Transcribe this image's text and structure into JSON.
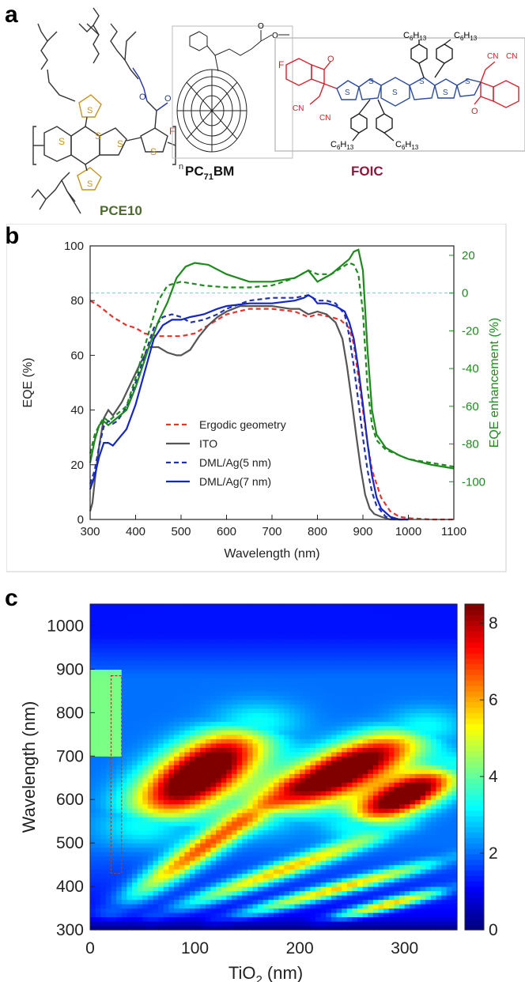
{
  "panels": {
    "a": "a",
    "b": "b",
    "c": "c"
  },
  "molecules": {
    "pce10": {
      "name": "PCE10",
      "color": "#4e6b2f",
      "atom_S": "S",
      "atom_O": "O",
      "atom_F": "F",
      "subscript_n": "n"
    },
    "pc71bm": {
      "name_pre": "PC",
      "name_sub": "71",
      "name_post": "BM"
    },
    "foic": {
      "name": "FOIC",
      "color": "#8b1a3a",
      "c6h13": [
        "C",
        "6",
        "H",
        "13"
      ],
      "atom_F": "F",
      "atom_O": "O",
      "cn": "CN",
      "atom_S": "S"
    }
  },
  "chart_data": [
    {
      "panel": "b",
      "type": "line",
      "xlabel": "Wavelength (nm)",
      "ylabel": "EQE (%)",
      "y2label": "EQE enhancement (%)",
      "xlim": [
        300,
        1100
      ],
      "ylim": [
        0,
        100
      ],
      "y2lim": [
        -120,
        25
      ],
      "xticks": [
        300,
        400,
        500,
        600,
        700,
        800,
        900,
        1000,
        1100
      ],
      "yticks": [
        0,
        20,
        40,
        60,
        80,
        100
      ],
      "y2ticks": [
        20,
        0,
        -20,
        -40,
        -60,
        -80,
        -100
      ],
      "reference_line_y2": 0,
      "legend_position": "center",
      "series": [
        {
          "name": "Ergodic geometry",
          "color": "#e8322b",
          "dash": true,
          "axis": "left",
          "x": [
            300,
            320,
            350,
            380,
            400,
            420,
            450,
            480,
            500,
            530,
            560,
            600,
            650,
            700,
            750,
            780,
            800,
            830,
            850,
            870,
            880,
            890,
            900,
            910,
            920,
            940,
            960,
            980,
            1000,
            1050,
            1100
          ],
          "y": [
            80,
            78,
            74,
            71,
            70,
            68,
            67,
            67,
            67,
            68,
            71,
            75,
            77,
            77,
            76,
            74,
            75,
            74,
            73,
            70,
            64,
            52,
            40,
            28,
            18,
            8,
            3,
            1,
            0.5,
            0,
            0
          ]
        },
        {
          "name": "ITO",
          "color": "#555555",
          "dash": false,
          "axis": "left",
          "x": [
            300,
            305,
            310,
            320,
            330,
            340,
            350,
            370,
            390,
            410,
            430,
            450,
            470,
            490,
            500,
            520,
            540,
            560,
            580,
            600,
            630,
            660,
            700,
            740,
            760,
            780,
            800,
            820,
            840,
            855,
            865,
            875,
            885,
            895,
            905,
            915,
            925,
            940,
            960,
            980,
            1000
          ],
          "y": [
            3,
            6,
            14,
            27,
            37,
            40,
            38,
            43,
            50,
            57,
            63,
            63,
            61,
            60,
            60,
            62,
            67,
            71,
            74,
            76,
            78,
            78,
            78,
            77,
            77,
            75,
            76,
            75,
            72,
            66,
            56,
            44,
            31,
            19,
            9,
            4,
            2,
            1,
            0,
            0,
            0
          ]
        },
        {
          "name": "DML/Ag(5 nm)",
          "color": "#2233aa",
          "dash": true,
          "axis": "left",
          "x": [
            300,
            310,
            320,
            330,
            340,
            350,
            360,
            380,
            400,
            420,
            440,
            460,
            480,
            500,
            520,
            550,
            580,
            600,
            650,
            700,
            750,
            780,
            800,
            820,
            840,
            860,
            870,
            880,
            890,
            900,
            910,
            920,
            930,
            950,
            970,
            1000
          ],
          "y": [
            13,
            18,
            27,
            34,
            36,
            35,
            36,
            41,
            50,
            60,
            70,
            74,
            75,
            74,
            72,
            73,
            75,
            77,
            80,
            81,
            81,
            82,
            80,
            80,
            79,
            75,
            67,
            56,
            43,
            30,
            18,
            10,
            5,
            1,
            0,
            0
          ]
        },
        {
          "name": "DML/Ag(7 nm)",
          "color": "#1526c8",
          "dash": false,
          "axis": "left",
          "x": [
            300,
            310,
            320,
            330,
            340,
            350,
            360,
            380,
            400,
            420,
            440,
            460,
            480,
            500,
            520,
            550,
            580,
            600,
            650,
            700,
            750,
            770,
            780,
            790,
            800,
            820,
            840,
            860,
            870,
            880,
            890,
            900,
            910,
            920,
            930,
            940,
            960,
            980,
            1000
          ],
          "y": [
            11,
            16,
            23,
            28,
            28,
            27,
            29,
            33,
            42,
            54,
            66,
            71,
            73,
            73,
            74,
            75,
            77,
            78,
            79,
            79,
            80,
            81,
            82,
            81,
            79,
            79,
            78,
            76,
            72,
            66,
            55,
            42,
            28,
            16,
            8,
            4,
            1,
            0,
            0
          ]
        },
        {
          "name": "",
          "color": "#1e8a1e",
          "dash": true,
          "axis": "right",
          "x": [
            300,
            310,
            320,
            330,
            340,
            350,
            380,
            400,
            430,
            450,
            470,
            500,
            550,
            600,
            650,
            700,
            750,
            780,
            800,
            830,
            850,
            870,
            880,
            890,
            900,
            910,
            920,
            930,
            950,
            980,
            1000,
            1050,
            1100
          ],
          "y": [
            -85,
            -75,
            -70,
            -66,
            -68,
            -66,
            -60,
            -45,
            -20,
            -4,
            4,
            6,
            4,
            3,
            3,
            4,
            8,
            12,
            10,
            10,
            13,
            16,
            15,
            10,
            -10,
            -50,
            -70,
            -78,
            -83,
            -86,
            -88,
            -90,
            -92
          ]
        },
        {
          "name": "",
          "color": "#1e8a1e",
          "dash": false,
          "axis": "right",
          "x": [
            300,
            310,
            320,
            330,
            340,
            350,
            380,
            400,
            430,
            450,
            470,
            490,
            510,
            530,
            560,
            600,
            650,
            700,
            750,
            780,
            800,
            830,
            850,
            870,
            880,
            890,
            900,
            910,
            920,
            930,
            950,
            980,
            1000,
            1050,
            1100
          ],
          "y": [
            -90,
            -78,
            -70,
            -68,
            -70,
            -68,
            -62,
            -50,
            -28,
            -15,
            -5,
            8,
            14,
            16,
            15,
            10,
            6,
            6,
            8,
            12,
            6,
            10,
            14,
            18,
            22,
            23,
            12,
            -30,
            -62,
            -75,
            -82,
            -86,
            -88,
            -91,
            -93
          ]
        }
      ]
    },
    {
      "panel": "c",
      "type": "heatmap",
      "xlabel": "TiO",
      "xlabel_sub": "2",
      "xlabel_unit": " (nm)",
      "ylabel": "Wavelength (nm)",
      "xlim": [
        0,
        350
      ],
      "ylim": [
        300,
        1050
      ],
      "xticks": [
        0,
        100,
        200,
        300
      ],
      "yticks": [
        300,
        400,
        500,
        600,
        700,
        800,
        900,
        1000
      ],
      "colorbar_range": [
        0,
        8.5
      ],
      "colorbar_ticks": [
        0,
        2,
        4,
        6,
        8
      ],
      "colormap": "jet",
      "highlight_box": {
        "x": [
          20,
          30
        ],
        "y": [
          430,
          885
        ]
      },
      "bands": [
        {
          "x0": 50,
          "y0": 540,
          "x1": 160,
          "y1": 780,
          "peak": 8.2,
          "width": 50
        },
        {
          "x0": 160,
          "y0": 560,
          "x1": 320,
          "y1": 770,
          "peak": 8.0,
          "width": 45
        },
        {
          "x0": 250,
          "y0": 540,
          "x1": 350,
          "y1": 680,
          "peak": 7.8,
          "width": 35
        },
        {
          "x0": 20,
          "y0": 340,
          "x1": 190,
          "y1": 630,
          "peak": 4.8,
          "width": 22
        },
        {
          "x0": 60,
          "y0": 330,
          "x1": 300,
          "y1": 540,
          "peak": 4.2,
          "width": 18
        },
        {
          "x0": 120,
          "y0": 320,
          "x1": 350,
          "y1": 470,
          "peak": 4.4,
          "width": 15
        },
        {
          "x0": 220,
          "y0": 320,
          "x1": 350,
          "y1": 400,
          "peak": 4.6,
          "width": 13
        }
      ]
    }
  ]
}
